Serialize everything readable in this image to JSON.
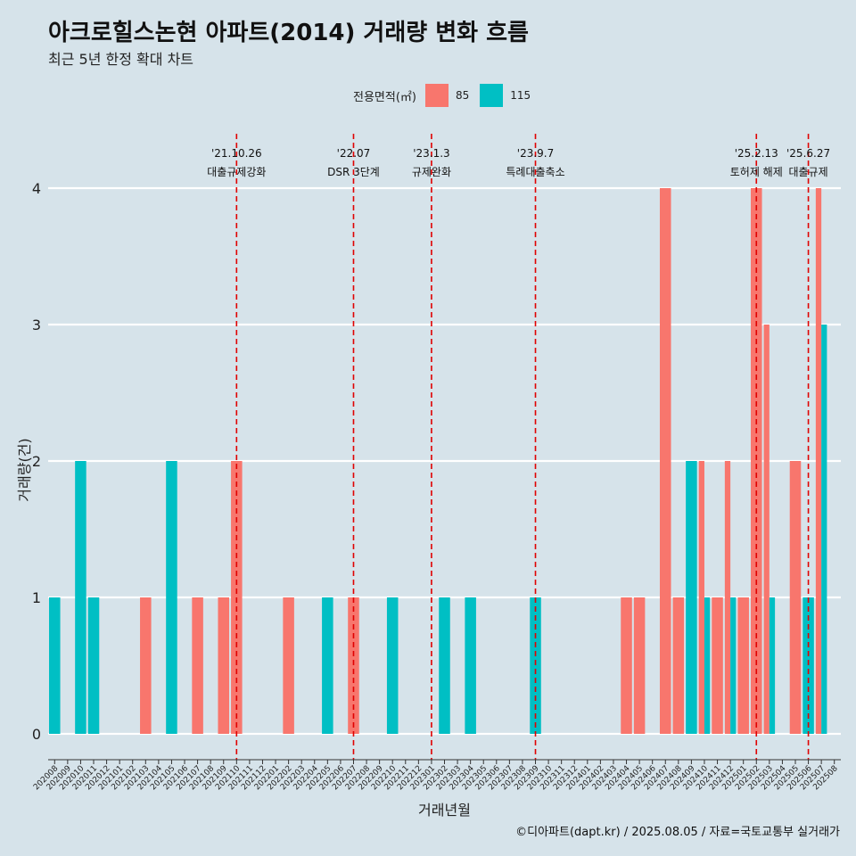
{
  "title": "아크로힐스논현 아파트(2014) 거래량 변화 흐름",
  "subtitle": "최근 5년 한정 확대 차트",
  "caption": "©디아파트(dapt.kr) / 2025.08.05 / 자료=국토교통부 실거래가",
  "legend": {
    "title": "전용면적(㎡)",
    "items": [
      {
        "label": "85",
        "color": "#f8766d"
      },
      {
        "label": "115",
        "color": "#00bfc4"
      }
    ]
  },
  "chart_data": {
    "type": "bar",
    "xlabel": "거래년월",
    "ylabel": "거래량(건)",
    "ylim": [
      0,
      4
    ],
    "yticks": [
      0,
      1,
      2,
      3,
      4
    ],
    "grid": true,
    "legend_position": "top",
    "categories": [
      "202008",
      "202009",
      "202010",
      "202011",
      "202012",
      "202101",
      "202102",
      "202103",
      "202104",
      "202105",
      "202106",
      "202107",
      "202108",
      "202109",
      "202110",
      "202111",
      "202112",
      "202201",
      "202202",
      "202203",
      "202204",
      "202205",
      "202206",
      "202207",
      "202208",
      "202209",
      "202210",
      "202211",
      "202212",
      "202301",
      "202302",
      "202303",
      "202304",
      "202305",
      "202306",
      "202307",
      "202308",
      "202309",
      "202310",
      "202311",
      "202312",
      "202401",
      "202402",
      "202403",
      "202404",
      "202405",
      "202406",
      "202407",
      "202408",
      "202409",
      "202410",
      "202411",
      "202412",
      "202501",
      "202502",
      "202503",
      "202504",
      "202505",
      "202506",
      "202507",
      "202508"
    ],
    "series": [
      {
        "name": "85",
        "color": "#f8766d",
        "values": [
          0,
          0,
          0,
          0,
          0,
          0,
          0,
          1,
          0,
          0,
          0,
          1,
          0,
          1,
          2,
          0,
          0,
          0,
          1,
          0,
          0,
          0,
          0,
          1,
          0,
          0,
          0,
          0,
          0,
          0,
          0,
          0,
          0,
          0,
          0,
          0,
          0,
          0,
          0,
          0,
          0,
          0,
          0,
          0,
          1,
          1,
          0,
          4,
          1,
          0,
          2,
          1,
          2,
          1,
          4,
          3,
          0,
          2,
          0,
          4,
          0
        ]
      },
      {
        "name": "115",
        "color": "#00bfc4",
        "values": [
          1,
          0,
          2,
          1,
          0,
          0,
          0,
          0,
          0,
          2,
          0,
          0,
          0,
          0,
          0,
          0,
          0,
          0,
          0,
          0,
          0,
          1,
          0,
          0,
          0,
          0,
          1,
          0,
          0,
          0,
          1,
          0,
          1,
          0,
          0,
          0,
          0,
          1,
          0,
          0,
          0,
          0,
          0,
          0,
          0,
          0,
          0,
          0,
          0,
          2,
          1,
          0,
          1,
          0,
          0,
          1,
          0,
          0,
          1,
          3,
          0
        ]
      }
    ],
    "annotations": [
      {
        "x": "202110",
        "date": "'21.10.26",
        "label": "대출규제강화"
      },
      {
        "x": "202207",
        "date": "'22.07",
        "label": "DSR 3단계"
      },
      {
        "x": "202301",
        "date": "'23.1.3",
        "label": "규제완화"
      },
      {
        "x": "202309",
        "date": "'23.9.7",
        "label": "특례대출축소"
      },
      {
        "x": "202502",
        "date": "'25.2.13",
        "label": "토허제 해제"
      },
      {
        "x": "202506",
        "date": "'25.6.27",
        "label": "대출규제"
      }
    ]
  }
}
